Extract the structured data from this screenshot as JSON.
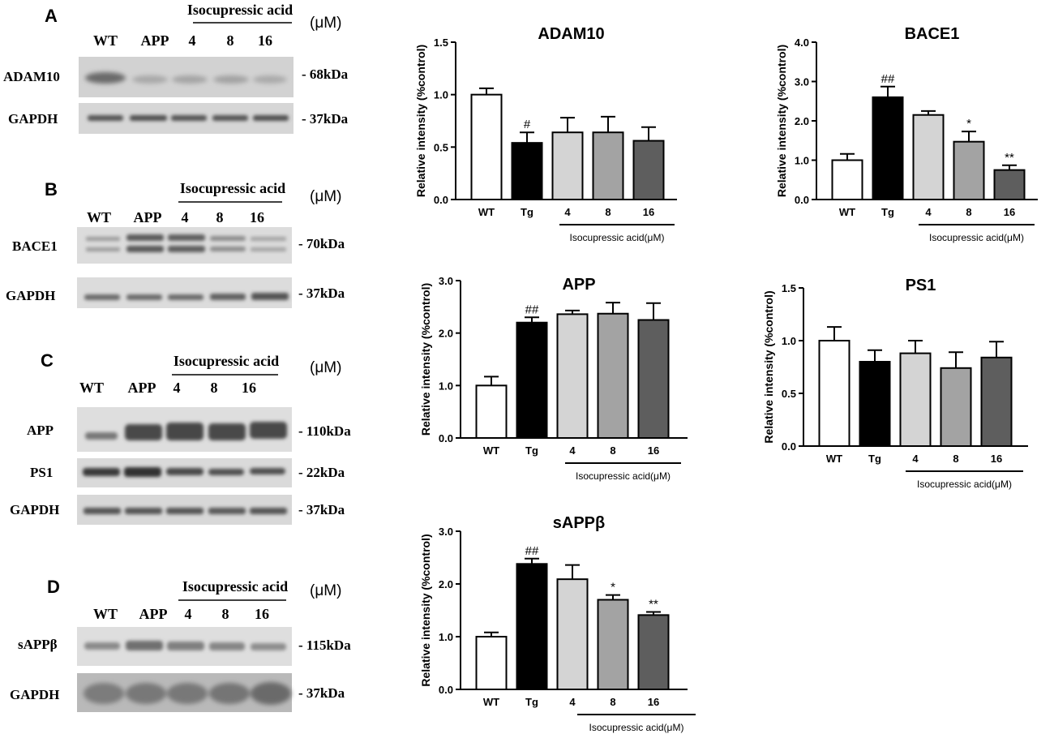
{
  "blot_panels": [
    {
      "letter": "A",
      "treatment_label": "Isocupressic acid",
      "unit_label": "(μM)",
      "lanes": [
        "WT",
        "APP",
        "4",
        "8",
        "16"
      ],
      "bands": [
        {
          "protein": "ADAM10",
          "size": "- 68kDa"
        },
        {
          "protein": "GAPDH",
          "size": "- 37kDa"
        }
      ]
    },
    {
      "letter": "B",
      "treatment_label": "Isocupressic acid",
      "unit_label": "(μM)",
      "lanes": [
        "WT",
        "APP",
        "4",
        "8",
        "16"
      ],
      "bands": [
        {
          "protein": "BACE1",
          "size": "- 70kDa"
        },
        {
          "protein": "GAPDH",
          "size": "- 37kDa"
        }
      ]
    },
    {
      "letter": "C",
      "treatment_label": "Isocupressic acid",
      "unit_label": "(μM)",
      "lanes": [
        "WT",
        "APP",
        "4",
        "8",
        "16"
      ],
      "bands": [
        {
          "protein": "APP",
          "size": "- 110kDa"
        },
        {
          "protein": "PS1",
          "size": "- 22kDa"
        },
        {
          "protein": "GAPDH",
          "size": "- 37kDa"
        }
      ]
    },
    {
      "letter": "D",
      "treatment_label": "Isocupressic acid",
      "unit_label": "(μM)",
      "lanes": [
        "WT",
        "APP",
        "4",
        "8",
        "16"
      ],
      "bands": [
        {
          "protein": "sAPPβ",
          "size": "- 115kDa"
        },
        {
          "protein": "GAPDH",
          "size": "- 37kDa"
        }
      ]
    }
  ],
  "colors": {
    "bar_fills": [
      "#ffffff",
      "#000000",
      "#d4d4d4",
      "#a3a3a3",
      "#5e5e5e"
    ],
    "axis": "#000000"
  },
  "chart_data": [
    {
      "type": "bar",
      "title": "ADAM10",
      "ylabel": "Relative intensity (%control)",
      "categories": [
        "WT",
        "Tg",
        "4",
        "8",
        "16"
      ],
      "group_label": "Isocupressic acid(μM)",
      "values": [
        1.0,
        0.54,
        0.64,
        0.64,
        0.56
      ],
      "errors": [
        0.06,
        0.1,
        0.14,
        0.15,
        0.13
      ],
      "significance": [
        "",
        "#",
        "",
        "",
        ""
      ],
      "ylim": [
        0,
        1.5
      ],
      "yticks": [
        "0.0",
        "0.5",
        "1.0",
        "1.5"
      ]
    },
    {
      "type": "bar",
      "title": "BACE1",
      "ylabel": "Relative intensity (%control)",
      "categories": [
        "WT",
        "Tg",
        "4",
        "8",
        "16"
      ],
      "group_label": "Isocupressic acid(μM)",
      "values": [
        1.0,
        2.6,
        2.15,
        1.47,
        0.75
      ],
      "errors": [
        0.16,
        0.27,
        0.1,
        0.26,
        0.12
      ],
      "significance": [
        "",
        "##",
        "",
        "*",
        "**"
      ],
      "ylim": [
        0,
        4.0
      ],
      "yticks": [
        "0.0",
        "1.0",
        "2.0",
        "3.0",
        "4.0"
      ]
    },
    {
      "type": "bar",
      "title": "APP",
      "ylabel": "Relative intensity (%control)",
      "categories": [
        "WT",
        "Tg",
        "4",
        "8",
        "16"
      ],
      "group_label": "Isocupressic acid(μM)",
      "values": [
        1.0,
        2.2,
        2.36,
        2.37,
        2.25
      ],
      "errors": [
        0.17,
        0.1,
        0.07,
        0.21,
        0.32
      ],
      "significance": [
        "",
        "##",
        "",
        "",
        ""
      ],
      "ylim": [
        0,
        3.0
      ],
      "yticks": [
        "0.0",
        "1.0",
        "2.0",
        "3.0"
      ]
    },
    {
      "type": "bar",
      "title": "PS1",
      "ylabel": "Relative intensity (%control)",
      "categories": [
        "WT",
        "Tg",
        "4",
        "8",
        "16"
      ],
      "group_label": "Isocupressic acid(μM)",
      "values": [
        1.0,
        0.8,
        0.88,
        0.74,
        0.84
      ],
      "errors": [
        0.13,
        0.11,
        0.12,
        0.15,
        0.15
      ],
      "significance": [
        "",
        "",
        "",
        "",
        ""
      ],
      "ylim": [
        0,
        1.5
      ],
      "yticks": [
        "0.0",
        "0.5",
        "1.0",
        "1.5"
      ]
    },
    {
      "type": "bar",
      "title": "sAPPβ",
      "ylabel": "Relative intensity (%control)",
      "categories": [
        "WT",
        "Tg",
        "4",
        "8",
        "16"
      ],
      "group_label": "Isocupressic acid(μM)",
      "values": [
        1.0,
        2.38,
        2.09,
        1.7,
        1.41
      ],
      "errors": [
        0.08,
        0.1,
        0.27,
        0.09,
        0.06
      ],
      "significance": [
        "",
        "##",
        "",
        "*",
        "**"
      ],
      "ylim": [
        0,
        3.0
      ],
      "yticks": [
        "0.0",
        "1.0",
        "2.0",
        "3.0"
      ]
    }
  ]
}
